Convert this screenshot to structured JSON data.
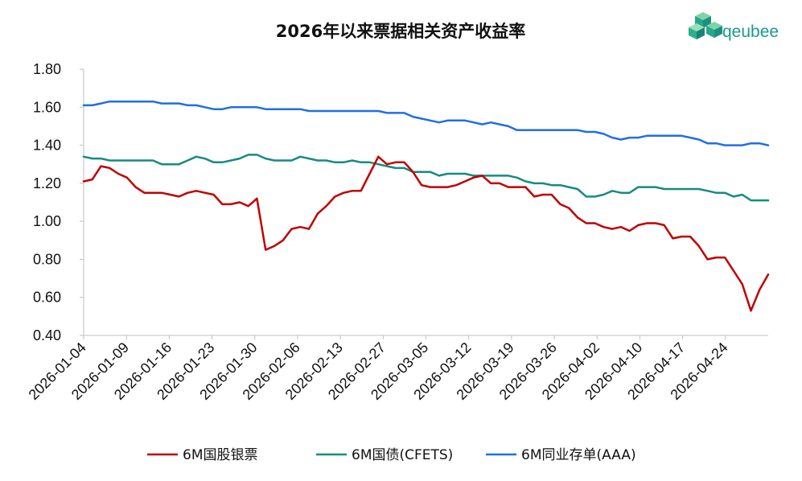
{
  "logo": {
    "text": "qeubee",
    "icon": "cube-cluster-logo",
    "color": "#1a9a8a"
  },
  "chart_data": {
    "type": "line",
    "title": "2026年以来票据相关资产收益率",
    "xlabel": "",
    "ylabel": "",
    "ylim": [
      0.4,
      1.8
    ],
    "yticks": [
      "1.80",
      "1.60",
      "1.40",
      "1.20",
      "1.00",
      "0.80",
      "0.60",
      "0.40"
    ],
    "xticks": [
      "2026-01-04",
      "2026-01-09",
      "2026-01-16",
      "2026-01-23",
      "2026-01-30",
      "2026-02-06",
      "2026-02-13",
      "2026-02-27",
      "2026-03-05",
      "2026-03-12",
      "2026-03-19",
      "2026-03-26",
      "2026-04-02",
      "2026-04-10",
      "2026-04-17",
      "2026-04-24"
    ],
    "grid": false,
    "legend_position": "bottom",
    "series": [
      {
        "name": "6M国股银票",
        "color": "#c00000",
        "values": [
          1.21,
          1.22,
          1.29,
          1.28,
          1.25,
          1.23,
          1.18,
          1.15,
          1.15,
          1.15,
          1.14,
          1.13,
          1.15,
          1.16,
          1.15,
          1.14,
          1.09,
          1.09,
          1.1,
          1.08,
          1.12,
          0.85,
          0.87,
          0.9,
          0.96,
          0.97,
          0.96,
          1.04,
          1.08,
          1.13,
          1.15,
          1.16,
          1.16,
          1.25,
          1.34,
          1.3,
          1.31,
          1.31,
          1.26,
          1.19,
          1.18,
          1.18,
          1.18,
          1.19,
          1.21,
          1.23,
          1.24,
          1.2,
          1.2,
          1.18,
          1.18,
          1.18,
          1.13,
          1.14,
          1.14,
          1.09,
          1.07,
          1.02,
          0.99,
          0.99,
          0.97,
          0.96,
          0.97,
          0.95,
          0.98,
          0.99,
          0.99,
          0.98,
          0.91,
          0.92,
          0.92,
          0.87,
          0.8,
          0.81,
          0.81,
          0.74,
          0.67,
          0.53,
          0.64,
          0.72
        ]
      },
      {
        "name": "6M国债(CFETS)",
        "color": "#168b80",
        "values": [
          1.34,
          1.33,
          1.33,
          1.32,
          1.32,
          1.32,
          1.32,
          1.32,
          1.32,
          1.3,
          1.3,
          1.3,
          1.32,
          1.34,
          1.33,
          1.31,
          1.31,
          1.32,
          1.33,
          1.35,
          1.35,
          1.33,
          1.32,
          1.32,
          1.32,
          1.34,
          1.33,
          1.32,
          1.32,
          1.31,
          1.31,
          1.32,
          1.31,
          1.31,
          1.3,
          1.29,
          1.28,
          1.28,
          1.26,
          1.26,
          1.26,
          1.24,
          1.25,
          1.25,
          1.25,
          1.24,
          1.24,
          1.24,
          1.24,
          1.24,
          1.23,
          1.21,
          1.2,
          1.2,
          1.19,
          1.19,
          1.18,
          1.17,
          1.13,
          1.13,
          1.14,
          1.16,
          1.15,
          1.15,
          1.18,
          1.18,
          1.18,
          1.17,
          1.17,
          1.17,
          1.17,
          1.17,
          1.16,
          1.15,
          1.15,
          1.13,
          1.14,
          1.11,
          1.11,
          1.11
        ]
      },
      {
        "name": "6M同业存单(AAA)",
        "color": "#1f6fe5",
        "values": [
          1.61,
          1.61,
          1.62,
          1.63,
          1.63,
          1.63,
          1.63,
          1.63,
          1.63,
          1.62,
          1.62,
          1.62,
          1.61,
          1.61,
          1.6,
          1.59,
          1.59,
          1.6,
          1.6,
          1.6,
          1.6,
          1.59,
          1.59,
          1.59,
          1.59,
          1.59,
          1.58,
          1.58,
          1.58,
          1.58,
          1.58,
          1.58,
          1.58,
          1.58,
          1.58,
          1.57,
          1.57,
          1.57,
          1.55,
          1.54,
          1.53,
          1.52,
          1.53,
          1.53,
          1.53,
          1.52,
          1.51,
          1.52,
          1.51,
          1.5,
          1.48,
          1.48,
          1.48,
          1.48,
          1.48,
          1.48,
          1.48,
          1.48,
          1.47,
          1.47,
          1.46,
          1.44,
          1.43,
          1.44,
          1.44,
          1.45,
          1.45,
          1.45,
          1.45,
          1.45,
          1.44,
          1.43,
          1.41,
          1.41,
          1.4,
          1.4,
          1.4,
          1.41,
          1.41,
          1.4
        ]
      }
    ]
  }
}
